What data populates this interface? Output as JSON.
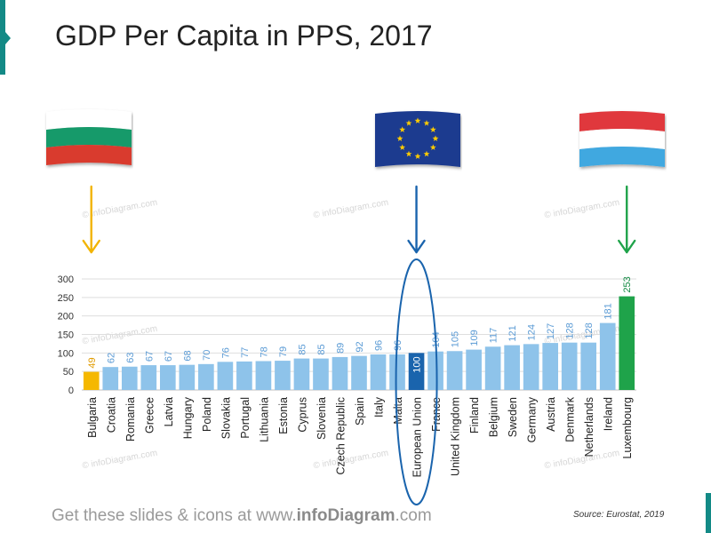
{
  "title": "GDP Per Capita in PPS, 2017",
  "footer": {
    "prefix": "Get these slides & icons at www.",
    "brand": "infoDiagram",
    "suffix": ".com"
  },
  "source": "Source: Eurostat, 2019",
  "watermark": "© infoDiagram.com",
  "flags": [
    {
      "name": "bulgaria-flag",
      "colors": [
        "#ffffff",
        "#159a6b",
        "#d93a2f"
      ]
    },
    {
      "name": "eu-flag",
      "colors": [
        "#1d3b8f",
        "#ffcc00"
      ]
    },
    {
      "name": "luxembourg-flag",
      "colors": [
        "#e0383c",
        "#ffffff",
        "#3fa8e0"
      ]
    }
  ],
  "arrow_colors": {
    "bulgaria": "#f2b400",
    "eu": "#1a64ad",
    "luxembourg": "#1fa34a"
  },
  "chart_data": {
    "type": "bar",
    "categories": [
      "Bulgaria",
      "Croatia",
      "Romania",
      "Greece",
      "Latvia",
      "Hungary",
      "Poland",
      "Slovakia",
      "Portugal",
      "Lithuania",
      "Estonia",
      "Cyprus",
      "Slovenia",
      "Czech Republic",
      "Spain",
      "Italy",
      "Malta",
      "European Union",
      "France",
      "United Kingdom",
      "Finland",
      "Belgium",
      "Sweden",
      "Germany",
      "Austria",
      "Denmark",
      "Netherlands",
      "Ireland",
      "Luxembourg"
    ],
    "values": [
      49,
      62,
      63,
      67,
      67,
      68,
      70,
      76,
      77,
      78,
      79,
      85,
      85,
      89,
      92,
      96,
      96,
      100,
      104,
      105,
      109,
      117,
      121,
      124,
      127,
      128,
      128,
      181,
      253
    ],
    "ylim": [
      0,
      300
    ],
    "yticks": [
      0,
      50,
      100,
      150,
      200,
      250,
      300
    ],
    "grid": true,
    "colors": {
      "default": "#8ec3ea",
      "bulgaria": "#f5b800",
      "eu": "#1a64ad",
      "luxembourg": "#1fa34a"
    },
    "label_colors": {
      "default": "#5b9bd5",
      "bulgaria": "#e09b00",
      "eu": "#ffffff",
      "luxembourg": "#138a43"
    }
  }
}
